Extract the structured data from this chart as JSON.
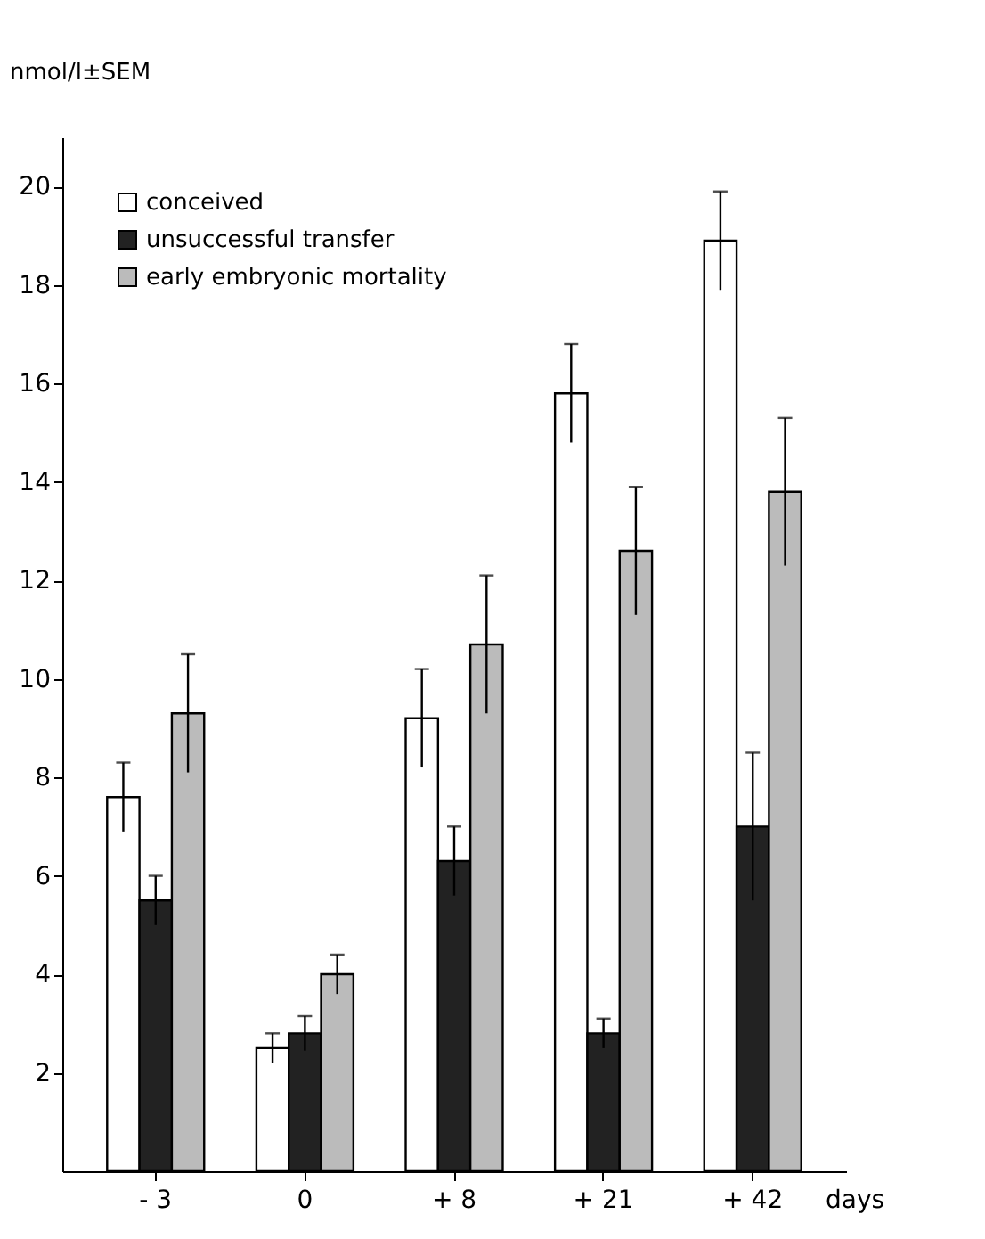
{
  "chart_data": {
    "type": "bar",
    "ylabel": "nmol/l±SEM",
    "xlabel": "days",
    "categories": [
      "- 3",
      "0",
      "+ 8",
      "+ 21",
      "+ 42"
    ],
    "series": [
      {
        "name": "conceived",
        "color": "#ffffff",
        "values": [
          7.6,
          2.5,
          9.2,
          15.8,
          18.9
        ],
        "errors": [
          0.7,
          0.3,
          1.0,
          1.0,
          1.0
        ]
      },
      {
        "name": "unsuccessful transfer",
        "color": "#222222",
        "values": [
          5.5,
          2.8,
          6.3,
          2.8,
          7.0
        ],
        "errors": [
          0.5,
          0.35,
          0.7,
          0.3,
          1.5
        ]
      },
      {
        "name": "early embryonic mortality",
        "color": "#bbbbbb",
        "values": [
          9.3,
          4.0,
          10.7,
          12.6,
          13.8
        ],
        "errors": [
          1.2,
          0.4,
          1.4,
          1.3,
          1.5
        ]
      }
    ],
    "ylim": [
      0,
      21
    ],
    "yticks": [
      2,
      4,
      6,
      8,
      10,
      12,
      14,
      16,
      18,
      20
    ],
    "grid": false,
    "legend": "top left"
  }
}
